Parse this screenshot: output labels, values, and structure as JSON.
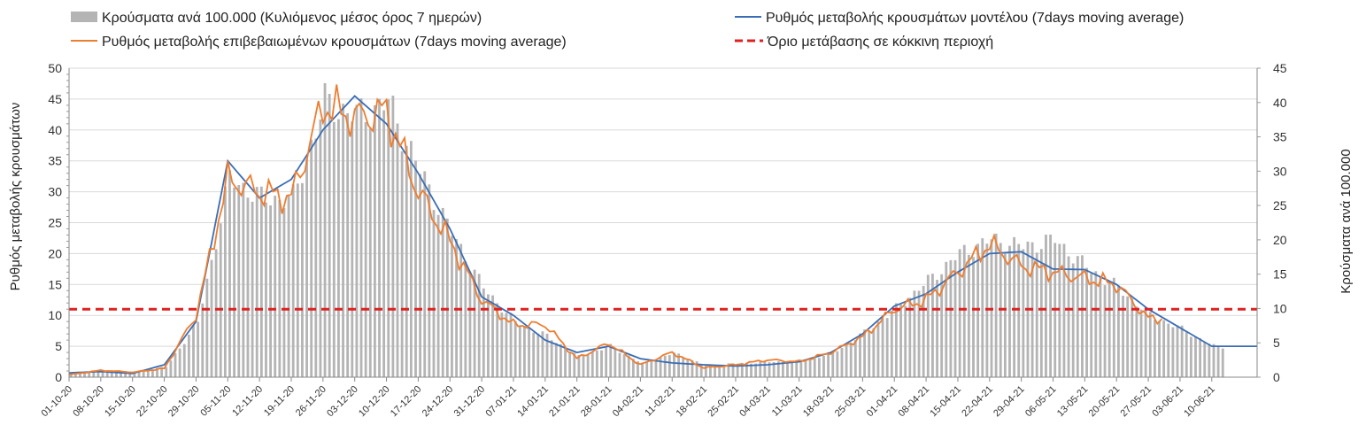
{
  "chart_data": {
    "type": "bar+line",
    "title": "",
    "x_categories": [
      "01-10-20",
      "08-10-20",
      "15-10-20",
      "22-10-20",
      "29-10-20",
      "05-11-20",
      "12-11-20",
      "19-11-20",
      "26-11-20",
      "03-12-20",
      "10-12-20",
      "17-12-20",
      "24-12-20",
      "31-12-20",
      "07-01-21",
      "14-01-21",
      "21-01-21",
      "28-01-21",
      "04-02-21",
      "11-02-21",
      "18-02-21",
      "25-02-21",
      "04-03-21",
      "11-03-21",
      "18-03-21",
      "25-03-21",
      "01-04-21",
      "08-04-21",
      "15-04-21",
      "22-04-21",
      "29-04-21",
      "06-05-21",
      "13-05-21",
      "20-05-21",
      "27-05-21",
      "03-06-21",
      "10-06-21"
    ],
    "y_left": {
      "label": "Ρυθμός μεταβολής κρουσμάτων",
      "range": [
        0,
        50
      ],
      "ticks": [
        "0",
        "5",
        "10",
        "15",
        "20",
        "25",
        "30",
        "35",
        "40",
        "45",
        "50"
      ]
    },
    "y_right": {
      "label": "Κρούσματα ανά 100.000",
      "range": [
        0,
        45
      ],
      "ticks": [
        "0",
        "5",
        "10",
        "15",
        "20",
        "25",
        "30",
        "35",
        "40",
        "45"
      ]
    },
    "legend": [
      {
        "key": "bars",
        "label": "Κρούσματα ανά 100.000 (Κυλιόμενος μέσος όρος 7 ημερών)",
        "color": "#b4b4b4"
      },
      {
        "key": "model",
        "label": "Ρυθμός μεταβολής κρουσμάτων μοντέλου (7days moving average)",
        "color": "#3a6db5"
      },
      {
        "key": "confirmed",
        "label": "Ρυθμός μεταβολής επιβεβαιωμένων κρουσμάτων (7days moving average)",
        "color": "#ed7d31"
      },
      {
        "key": "threshold",
        "label": "Όριο μετάβασης σε κόκκινη περιοχή",
        "color": "#e02020"
      }
    ],
    "series": [
      {
        "name": "Κρούσματα ανά 100.000 (Κυλιόμενος μέσος όρος 7 ημερών)",
        "axis": "right",
        "kind": "bar",
        "weekly_values": [
          0.6,
          1.0,
          0.8,
          1.5,
          8,
          29,
          26,
          26,
          40,
          38,
          40,
          30,
          21,
          13,
          8,
          6,
          3,
          4.5,
          2,
          3.5,
          1.7,
          2,
          2.2,
          2.3,
          3.5,
          6.5,
          10,
          14,
          18,
          20,
          19,
          20,
          16,
          13,
          9,
          7,
          4.5
        ]
      },
      {
        "name": "Ρυθμός μεταβολής κρουσμάτων μοντέλου (7days moving average)",
        "axis": "left",
        "kind": "line",
        "weekly_values": [
          0.7,
          0.9,
          0.6,
          2,
          9,
          35,
          29,
          32,
          40,
          45.5,
          41,
          33,
          24,
          13,
          10,
          6,
          4,
          5,
          3,
          2.3,
          2,
          1.8,
          2,
          2.5,
          4,
          7,
          11.5,
          13.5,
          17,
          20,
          20.3,
          17.5,
          17.4,
          15,
          11,
          8,
          5
        ]
      },
      {
        "name": "Ρυθμός μεταβολής επιβεβαιωμένων κρουσμάτων (7days moving average)",
        "axis": "left",
        "kind": "line",
        "weekly_values": [
          0.4,
          1.1,
          0.8,
          1.4,
          10,
          32,
          30,
          29,
          44,
          42,
          43,
          30,
          22,
          12.5,
          8.5,
          8.5,
          3,
          5.5,
          2,
          4,
          1.5,
          2,
          2.8,
          2.5,
          4,
          6.5,
          11,
          12.5,
          17,
          21.5,
          18,
          17,
          16,
          15,
          9.5
        ]
      },
      {
        "name": "Όριο μετάβασης σε κόκκινη περιοχή",
        "axis": "left",
        "kind": "reference_line",
        "value": 11
      }
    ]
  }
}
